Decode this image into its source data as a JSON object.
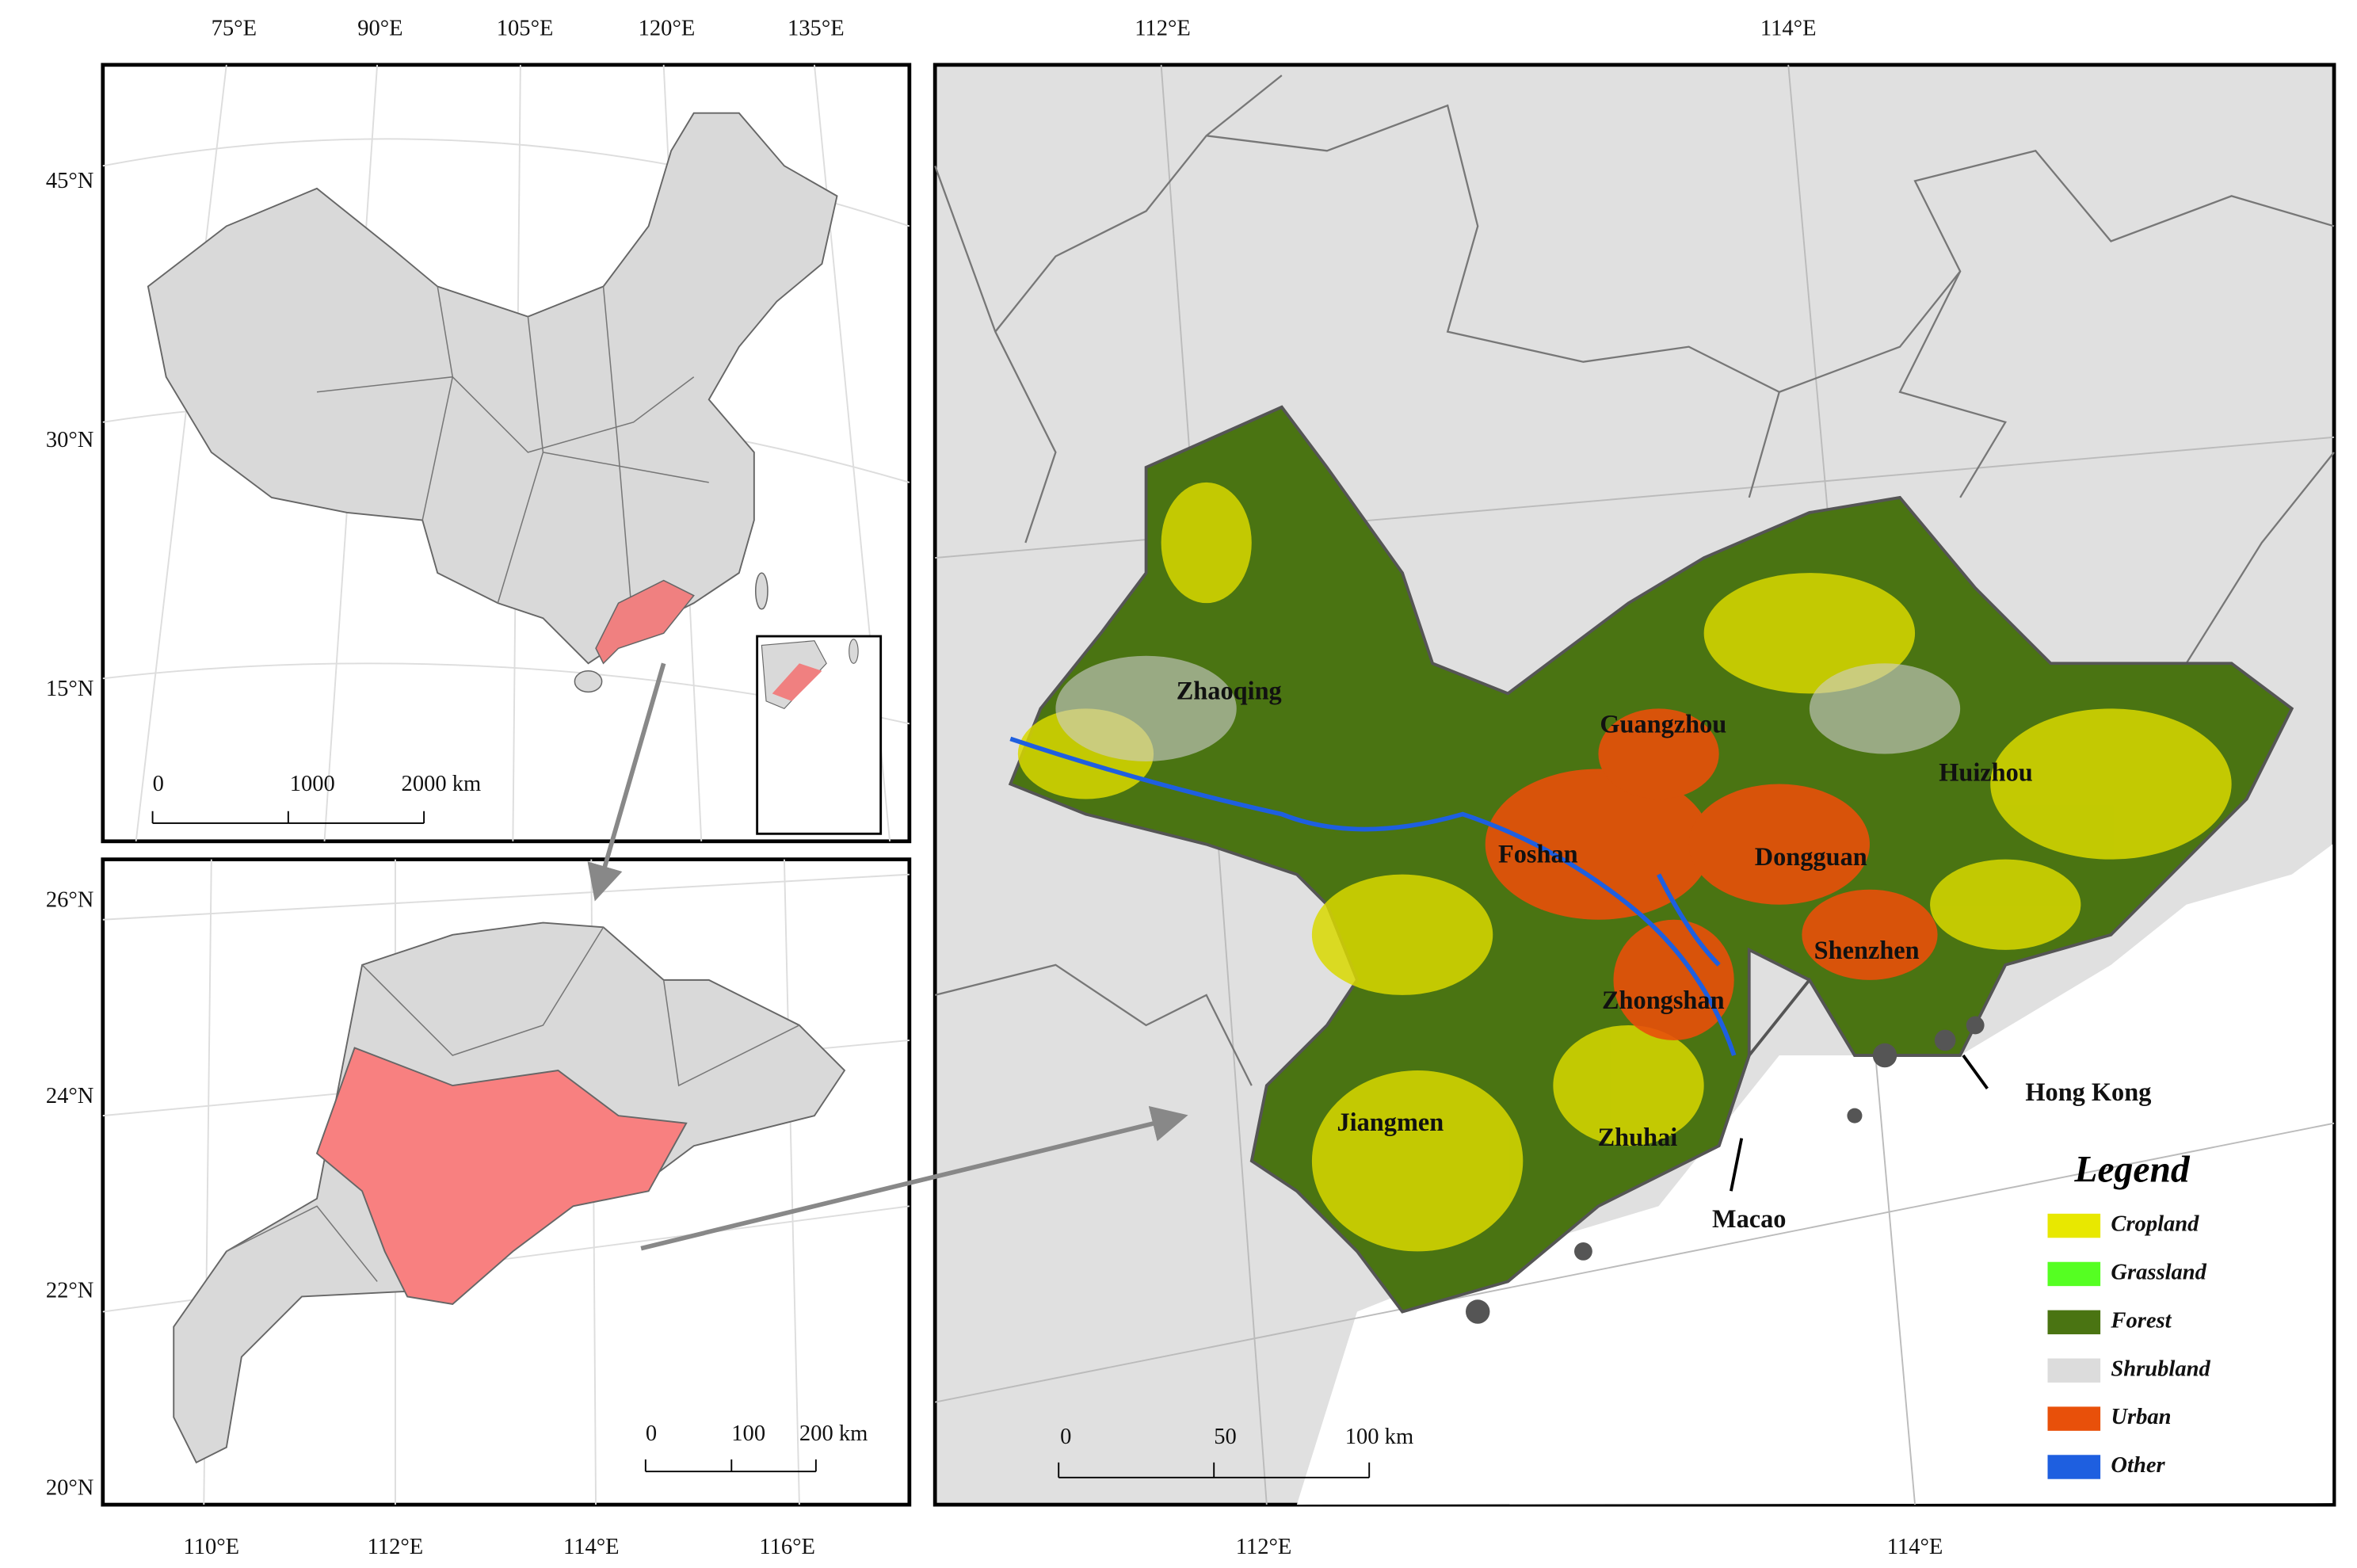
{
  "overview_map": {
    "lon_labels": [
      "75°E",
      "90°E",
      "105°E",
      "120°E",
      "135°E"
    ],
    "lat_labels": [
      "45°N",
      "30°N",
      "15°N"
    ],
    "scale_labels": [
      "0",
      "1000",
      "2000 km"
    ]
  },
  "province_map": {
    "lat_labels": [
      "26°N",
      "24°N",
      "22°N",
      "20°N"
    ],
    "lon_labels": [
      "110°E",
      "112°E",
      "114°E",
      "116°E"
    ],
    "scale_labels": [
      "0",
      "100",
      "200 km"
    ]
  },
  "main_map": {
    "top_lon_labels": [
      "112°E",
      "114°E"
    ],
    "bottom_lon_labels": [
      "112°E",
      "114°E"
    ],
    "cities": [
      "Zhaoqing",
      "Guangzhou",
      "Huizhou",
      "Foshan",
      "Dongguan",
      "Shenzhen",
      "Zhongshan",
      "Jiangmen",
      "Zhuhai",
      "Macao",
      "Hong Kong"
    ],
    "scale_labels": [
      "0",
      "50",
      "100 km"
    ],
    "legend": {
      "title": "Legend",
      "items": [
        {
          "label": "Cropland",
          "color": "#e8e800"
        },
        {
          "label": "Grassland",
          "color": "#55ff22"
        },
        {
          "label": "Forest",
          "color": "#4a7412"
        },
        {
          "label": "Shrubland",
          "color": "#dcdcdc"
        },
        {
          "label": "Urban",
          "color": "#e8500a"
        },
        {
          "label": "Other",
          "color": "#1e5fe0"
        }
      ]
    }
  }
}
